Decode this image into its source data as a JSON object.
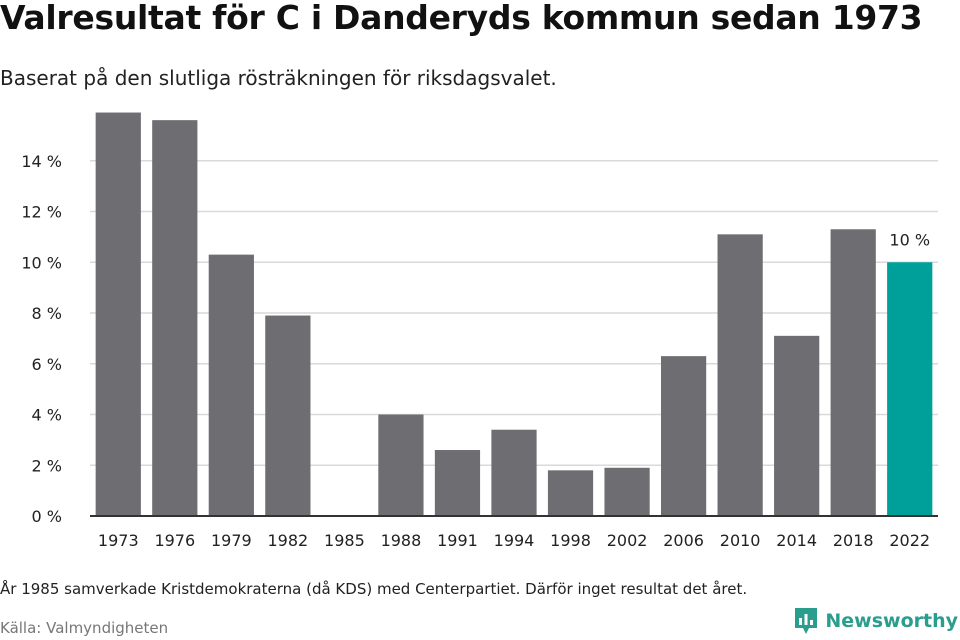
{
  "header": {
    "title": "Valresultat för C i Danderyds kommun sedan 1973",
    "subtitle": "Baserat på den slutliga rösträkningen för riksdagsvalet."
  },
  "footer": {
    "note": "År 1985 samverkade Kristdemokraterna (då KDS) med Centerpartiet. Därför inget resultat det året.",
    "source": "Källa: Valmyndigheten",
    "brand": "Newsworthy",
    "brand_icon": "newsworthy-logo-icon"
  },
  "colors": {
    "bar": "#6e6d72",
    "highlight": "#00a09a",
    "grid": "#d9d9d9",
    "axis": "#333333",
    "brand": "#2a9d8f"
  },
  "chart_data": {
    "type": "bar",
    "title": "Valresultat för C i Danderyds kommun sedan 1973",
    "subtitle": "Baserat på den slutliga rösträkningen för riksdagsvalet.",
    "xlabel": "",
    "ylabel": "",
    "categories": [
      "1973",
      "1976",
      "1979",
      "1982",
      "1985",
      "1988",
      "1991",
      "1994",
      "1998",
      "2002",
      "2006",
      "2010",
      "2014",
      "2018",
      "2022"
    ],
    "values": [
      15.9,
      15.6,
      10.3,
      7.9,
      null,
      4.0,
      2.6,
      3.4,
      1.8,
      1.9,
      6.3,
      11.1,
      7.1,
      11.3,
      10.0
    ],
    "highlight_index": 14,
    "data_labels": [
      {
        "index": 14,
        "text": "10 %"
      }
    ],
    "ylim": [
      0,
      16
    ],
    "yticks": [
      0,
      2,
      4,
      6,
      8,
      10,
      12,
      14
    ],
    "ytick_labels": [
      "0 %",
      "2 %",
      "4 %",
      "6 %",
      "8 %",
      "10 %",
      "12 %",
      "14 %"
    ],
    "grid": true,
    "legend": "none"
  }
}
